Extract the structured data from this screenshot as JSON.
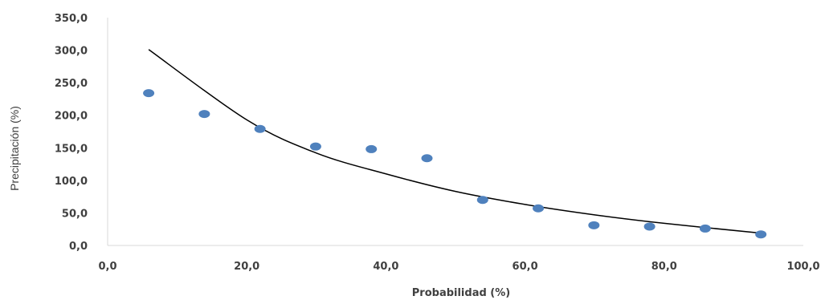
{
  "chart_data": {
    "type": "scatter",
    "title": "",
    "xlabel": "Probabilidad (%)",
    "ylabel": "Precipitación (%)",
    "xlim": [
      0,
      100
    ],
    "ylim": [
      0,
      350
    ],
    "x_ticks": [
      0,
      20,
      40,
      60,
      80,
      100
    ],
    "y_ticks": [
      0,
      50,
      100,
      150,
      200,
      250,
      300,
      350
    ],
    "x_tick_labels": [
      "0,0",
      "20,0",
      "40,0",
      "60,0",
      "80,0",
      "100,0"
    ],
    "y_tick_labels": [
      "0,0",
      "50,0",
      "100,0",
      "150,0",
      "200,0",
      "250,0",
      "300,0",
      "350,0"
    ],
    "grid": false,
    "legend": "none",
    "point_color": "#4F81BD",
    "trendline_color": "#000000",
    "series": [
      {
        "points": [
          {
            "x": 5.9,
            "y": 234.0
          },
          {
            "x": 13.9,
            "y": 202.0
          },
          {
            "x": 21.9,
            "y": 179.0
          },
          {
            "x": 29.9,
            "y": 152.0
          },
          {
            "x": 37.9,
            "y": 148.0
          },
          {
            "x": 45.9,
            "y": 134.0
          },
          {
            "x": 53.9,
            "y": 70.0
          },
          {
            "x": 61.9,
            "y": 57.0
          },
          {
            "x": 69.9,
            "y": 31.0
          },
          {
            "x": 77.9,
            "y": 29.0
          },
          {
            "x": 85.9,
            "y": 26.0
          },
          {
            "x": 93.9,
            "y": 17.0
          }
        ]
      }
    ],
    "trendline": {
      "type": "exponential",
      "points": [
        {
          "x": 5.9,
          "y": 301.0
        },
        {
          "x": 20.0,
          "y": 193.0
        },
        {
          "x": 30.0,
          "y": 142.0
        },
        {
          "x": 40.0,
          "y": 110.0
        },
        {
          "x": 50.0,
          "y": 83.0
        },
        {
          "x": 60.0,
          "y": 63.0
        },
        {
          "x": 70.0,
          "y": 47.0
        },
        {
          "x": 80.0,
          "y": 34.0
        },
        {
          "x": 93.9,
          "y": 19.0
        }
      ]
    }
  }
}
